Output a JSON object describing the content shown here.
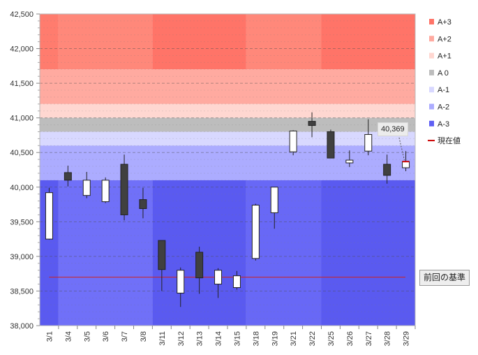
{
  "chart_data": {
    "type": "candlestick",
    "title": "",
    "xlabel": "",
    "ylabel": "",
    "ylim": [
      38000,
      42500
    ],
    "yticks": [
      38000,
      38500,
      39000,
      39500,
      40000,
      40500,
      41000,
      41500,
      42000,
      42500
    ],
    "ytick_labels": [
      "38,000",
      "38,500",
      "39,000",
      "39,500",
      "40,000",
      "40,500",
      "41,000",
      "41,500",
      "42,000",
      "42,500"
    ],
    "grid": true,
    "categories": [
      "3/1",
      "3/4",
      "3/5",
      "3/6",
      "3/7",
      "3/8",
      "3/11",
      "3/12",
      "3/13",
      "3/14",
      "3/15",
      "3/18",
      "3/19",
      "3/21",
      "3/22",
      "3/25",
      "3/26",
      "3/27",
      "3/28",
      "3/29"
    ],
    "candles": [
      {
        "open": 39250,
        "high": 39990,
        "low": 39240,
        "close": 39920
      },
      {
        "open": 40210,
        "high": 40310,
        "low": 40010,
        "close": 40100
      },
      {
        "open": 39880,
        "high": 40220,
        "low": 39840,
        "close": 40100
      },
      {
        "open": 39790,
        "high": 40140,
        "low": 39770,
        "close": 40100
      },
      {
        "open": 40330,
        "high": 40470,
        "low": 39520,
        "close": 39600
      },
      {
        "open": 39820,
        "high": 39990,
        "low": 39550,
        "close": 39690
      },
      {
        "open": 39230,
        "high": 39230,
        "low": 38500,
        "close": 38810
      },
      {
        "open": 38470,
        "high": 38840,
        "low": 38270,
        "close": 38800
      },
      {
        "open": 39060,
        "high": 39140,
        "low": 38460,
        "close": 38690
      },
      {
        "open": 38600,
        "high": 38830,
        "low": 38400,
        "close": 38800
      },
      {
        "open": 38550,
        "high": 38790,
        "low": 38520,
        "close": 38720
      },
      {
        "open": 38970,
        "high": 39760,
        "low": 38940,
        "close": 39740
      },
      {
        "open": 39630,
        "high": 40000,
        "low": 39400,
        "close": 40000
      },
      {
        "open": 40510,
        "high": 40820,
        "low": 40460,
        "close": 40810
      },
      {
        "open": 40950,
        "high": 41080,
        "low": 40720,
        "close": 40890
      },
      {
        "open": 40800,
        "high": 40830,
        "low": 40420,
        "close": 40420
      },
      {
        "open": 40350,
        "high": 40530,
        "low": 40290,
        "close": 40390
      },
      {
        "open": 40520,
        "high": 40980,
        "low": 40460,
        "close": 40760
      },
      {
        "open": 40330,
        "high": 40470,
        "low": 40050,
        "close": 40170
      },
      {
        "open": 40280,
        "high": 40520,
        "low": 40230,
        "close": 40369
      }
    ],
    "bands": [
      {
        "name": "A+3",
        "color": "#ff7468",
        "segments": [
          {
            "from": 0,
            "to": 1,
            "low": 41700,
            "high": 42500,
            "color": "#ff7c6e"
          },
          {
            "from": 1,
            "to": 6,
            "low": 41700,
            "high": 42500,
            "color": "#ff887a"
          },
          {
            "from": 6,
            "to": 11,
            "low": 41700,
            "high": 42500,
            "color": "#ff7468"
          },
          {
            "from": 11,
            "to": 15,
            "low": 41700,
            "high": 42500,
            "color": "#ff887a"
          },
          {
            "from": 15,
            "to": 20,
            "low": 41700,
            "high": 42500,
            "color": "#ff7468"
          }
        ]
      },
      {
        "name": "A+2",
        "color": "#ffaaa0",
        "segments": [
          {
            "from": 0,
            "to": 20,
            "low": 41200,
            "high": 41700,
            "color": "#ffaaa0"
          }
        ]
      },
      {
        "name": "A+1",
        "color": "#ffd7d1",
        "segments": [
          {
            "from": 0,
            "to": 20,
            "low": 41000,
            "high": 41200,
            "color": "#ffd7d1"
          }
        ]
      },
      {
        "name": "A 0",
        "color": "#bdbdbd",
        "segments": [
          {
            "from": 0,
            "to": 20,
            "low": 40800,
            "high": 41000,
            "color": "#bdbdbd"
          }
        ]
      },
      {
        "name": "A-1",
        "color": "#d8d8ff",
        "segments": [
          {
            "from": 0,
            "to": 20,
            "low": 40600,
            "high": 40800,
            "color": "#d8d8ff"
          }
        ]
      },
      {
        "name": "A-2",
        "color": "#acacff",
        "segments": [
          {
            "from": 0,
            "to": 20,
            "low": 40100,
            "high": 40600,
            "color": "#acacff"
          }
        ]
      },
      {
        "name": "A-3",
        "color": "#6060f4",
        "segments": [
          {
            "from": 0,
            "to": 1,
            "low": 38000,
            "high": 40100,
            "color": "#5a5af0"
          },
          {
            "from": 1,
            "to": 6,
            "low": 38000,
            "high": 40100,
            "color": "#7070f8"
          },
          {
            "from": 6,
            "to": 11,
            "low": 38000,
            "high": 40100,
            "color": "#5a5af0"
          },
          {
            "from": 11,
            "to": 15,
            "low": 38000,
            "high": 40100,
            "color": "#6868f6"
          },
          {
            "from": 15,
            "to": 20,
            "low": 38000,
            "high": 40100,
            "color": "#5a5af0"
          }
        ]
      }
    ],
    "reference_line": {
      "label": "前回の基準",
      "value": 38700,
      "color": "#cc2222"
    },
    "current_value": {
      "legend": "現在値",
      "value": 40369,
      "label": "40,369",
      "color": "#cc0000"
    },
    "legend": [
      "A+3",
      "A+2",
      "A+1",
      "A 0",
      "A-1",
      "A-2",
      "A-3",
      "現在値"
    ],
    "colors": {
      "up": "#ffffff",
      "down": "#404040",
      "outline": "#222222"
    }
  }
}
